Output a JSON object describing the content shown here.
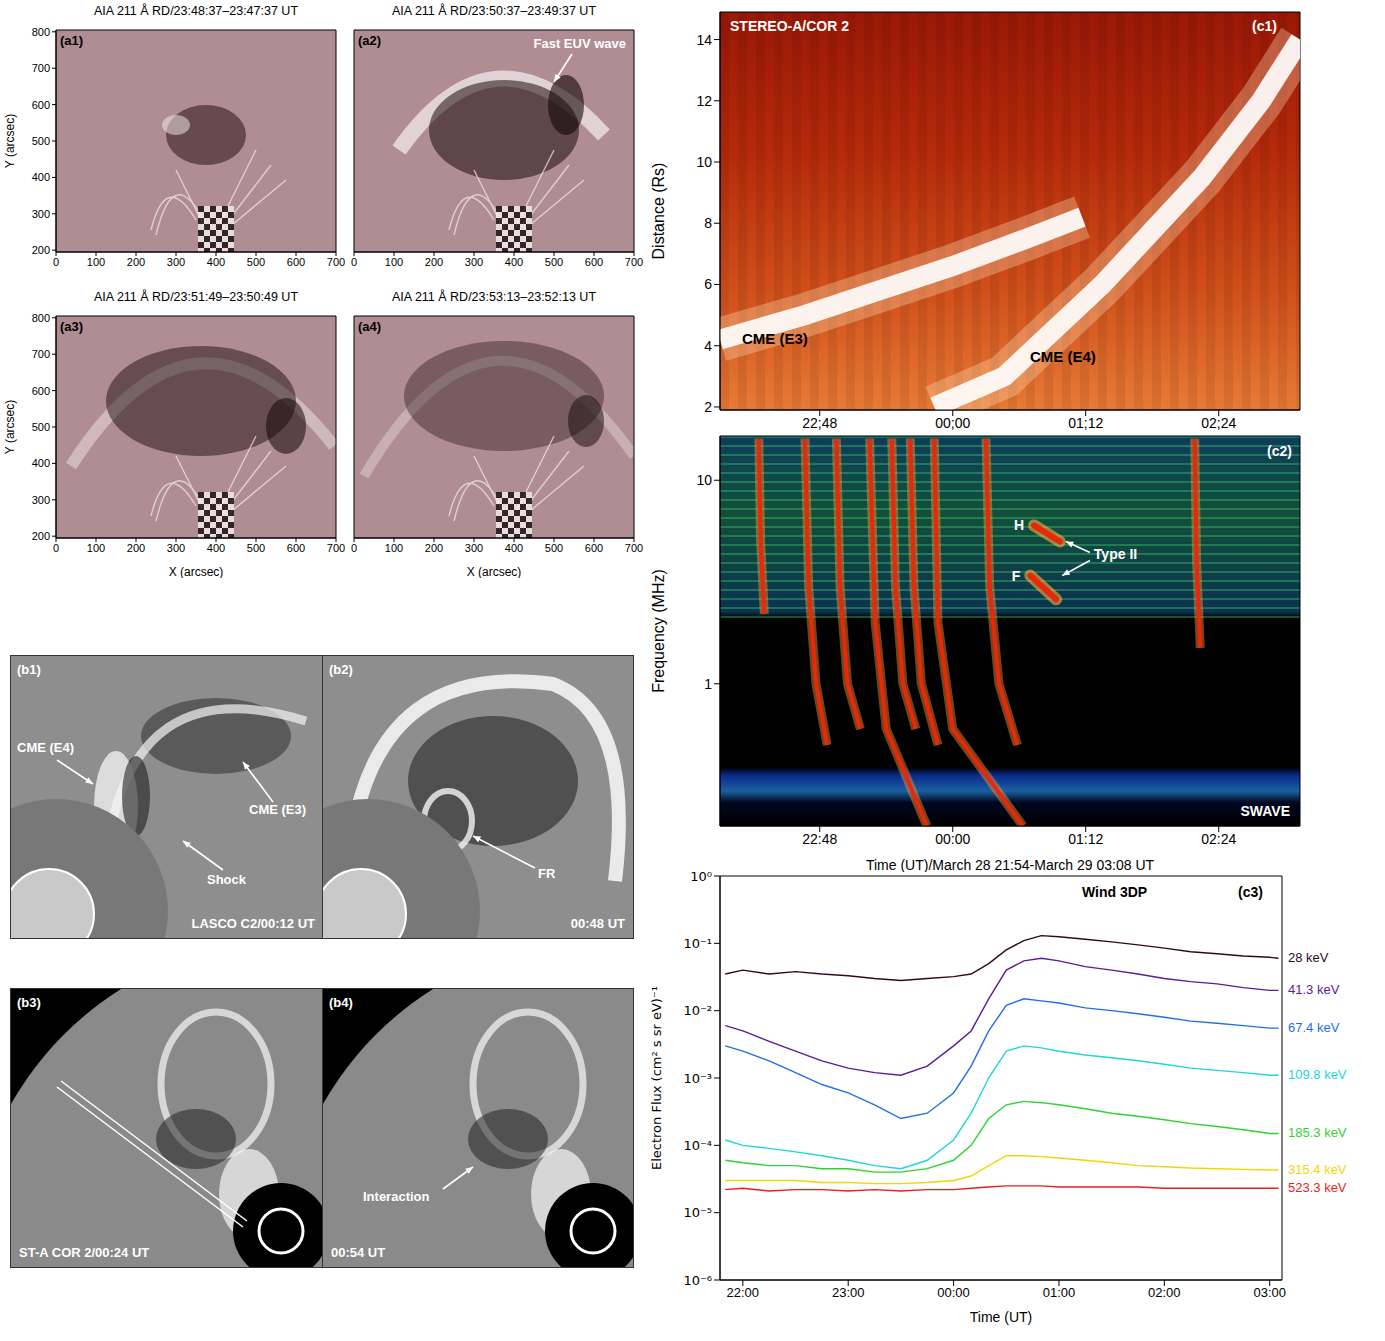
{
  "chart_data": [
    {
      "type": "image",
      "panel_label": "(a1)",
      "title": "AIA 211 Å RD/23:48:37–23:47:37 UT",
      "y_label": "Y (arcsec)",
      "xlim": [
        0,
        700
      ],
      "ylim": [
        195,
        805
      ],
      "xticks": [
        0,
        100,
        200,
        300,
        400,
        500,
        600,
        700
      ],
      "yticks": [
        200,
        300,
        400,
        500,
        600,
        700,
        800
      ],
      "annotations": []
    },
    {
      "type": "image",
      "panel_label": "(a2)",
      "title": "AIA 211 Å RD/23:50:37–23:49:37 UT",
      "tick_labels": "x",
      "xlim": [
        0,
        700
      ],
      "ylim": [
        195,
        805
      ],
      "xticks": [
        0,
        100,
        200,
        300,
        400,
        500,
        600,
        700
      ],
      "yticks": [
        200,
        300,
        400,
        500,
        600,
        700,
        800
      ],
      "annotations": [
        "Fast EUV wave"
      ]
    },
    {
      "type": "image",
      "panel_label": "(a3)",
      "title": "AIA 211 Å RD/23:51:49–23:50:49 UT",
      "x_label": "X (arcsec)",
      "y_label": "Y (arcsec)",
      "xlim": [
        0,
        700
      ],
      "ylim": [
        195,
        805
      ],
      "xticks": [
        0,
        100,
        200,
        300,
        400,
        500,
        600,
        700
      ],
      "yticks": [
        200,
        300,
        400,
        500,
        600,
        700,
        800
      ],
      "annotations": []
    },
    {
      "type": "image",
      "panel_label": "(a4)",
      "title": "AIA 211 Å RD/23:53:13–23:52:13 UT",
      "x_label": "X (arcsec)",
      "tick_labels": "x",
      "xlim": [
        0,
        700
      ],
      "ylim": [
        195,
        805
      ],
      "xticks": [
        0,
        100,
        200,
        300,
        400,
        500,
        600,
        700
      ],
      "yticks": [
        200,
        300,
        400,
        500,
        600,
        700,
        800
      ],
      "annotations": []
    },
    {
      "type": "jmap",
      "panel_label": "(c1)",
      "title": "STEREO-A/COR 2",
      "y_label": "Distance (Rs)",
      "xlim": [
        1314,
        1628
      ],
      "xticks": [
        {
          "value": 1368,
          "label": "22;48"
        },
        {
          "value": 1440,
          "label": "00;00"
        },
        {
          "value": 1512,
          "label": "01;12"
        },
        {
          "value": 1584,
          "label": "02;24"
        }
      ],
      "ylim": [
        1.9,
        14.9
      ],
      "yticks": [
        2,
        4,
        6,
        8,
        10,
        12,
        14
      ],
      "series": [
        {
          "name": "CME (E3)",
          "x": [
            1314,
            1360,
            1400,
            1440,
            1480,
            1510
          ],
          "values": [
            4.2,
            5.0,
            5.8,
            6.6,
            7.5,
            8.2
          ]
        },
        {
          "name": "CME (E4)",
          "x": [
            1430,
            1468,
            1521,
            1575,
            1607,
            1628
          ],
          "values": [
            2.0,
            3.0,
            6.0,
            9.5,
            12.0,
            14.0
          ]
        }
      ]
    },
    {
      "type": "spectrogram",
      "panel_label": "(c2)",
      "title": "SWAVE",
      "y_label": "Frequency (MHz)",
      "x_label": "Time (UT)/March 28 21:54-March 29 03:08 UT",
      "log": "y",
      "xlim": [
        1314,
        1628
      ],
      "xticks": [
        {
          "value": 1368,
          "label": "22:48"
        },
        {
          "value": 1440,
          "label": "00:00"
        },
        {
          "value": 1512,
          "label": "01:12"
        },
        {
          "value": 1584,
          "label": "02:24"
        }
      ],
      "ylim": [
        0.2,
        16.5
      ],
      "yticks": [
        1,
        10
      ],
      "bursts": [
        {
          "x": [
            1335,
            1336,
            1338
          ],
          "values": [
            16,
            5,
            2.2
          ]
        },
        {
          "x": [
            1360,
            1362,
            1366,
            1372
          ],
          "values": [
            16,
            3,
            1,
            0.5
          ]
        },
        {
          "x": [
            1377,
            1379,
            1383,
            1390
          ],
          "values": [
            16,
            3,
            1,
            0.6
          ]
        },
        {
          "x": [
            1395,
            1398,
            1404,
            1426
          ],
          "values": [
            16,
            2,
            0.6,
            0.2
          ]
        },
        {
          "x": [
            1407,
            1409,
            1413,
            1420
          ],
          "values": [
            16,
            3,
            1,
            0.6
          ]
        },
        {
          "x": [
            1417,
            1419,
            1423,
            1432
          ],
          "values": [
            16,
            3,
            1,
            0.5
          ]
        },
        {
          "x": [
            1430,
            1432,
            1440,
            1478
          ],
          "values": [
            16,
            2,
            0.6,
            0.2
          ]
        },
        {
          "x": [
            1458,
            1460,
            1465,
            1475
          ],
          "values": [
            16,
            3,
            1,
            0.5
          ]
        },
        {
          "x": [
            1571,
            1572,
            1574
          ],
          "values": [
            16,
            4,
            1.5
          ]
        }
      ],
      "type_II": {
        "name": "Type II",
        "bands": [
          {
            "name": "H",
            "x": [
              1484,
              1498
            ],
            "values": [
              6.0,
              5.0
            ]
          },
          {
            "name": "F",
            "x": [
              1482,
              1496
            ],
            "values": [
              3.4,
              2.6
            ]
          }
        ]
      }
    },
    {
      "type": "line",
      "panel_label": "(c3)",
      "title": "Wind 3DP",
      "x_label": "Time (UT)",
      "y_label": "Electron Flux (cm² s sr eV)⁻¹",
      "log": "y",
      "xlim": [
        1307,
        1627
      ],
      "xticks": [
        {
          "value": 1320,
          "label": "22:00"
        },
        {
          "value": 1380,
          "label": "23:00"
        },
        {
          "value": 1440,
          "label": "00:00"
        },
        {
          "value": 1500,
          "label": "01:00"
        },
        {
          "value": 1560,
          "label": "02:00"
        },
        {
          "value": 1620,
          "label": "03:00"
        }
      ],
      "ylim": [
        1e-06,
        1
      ],
      "yticks": [
        {
          "value": 1e-06,
          "label": "10⁻⁶"
        },
        {
          "value": 1e-05,
          "label": "10⁻⁵"
        },
        {
          "value": 0.0001,
          "label": "10⁻⁴"
        },
        {
          "value": 0.001,
          "label": "10⁻³"
        },
        {
          "value": 0.01,
          "label": "10⁻²"
        },
        {
          "value": 0.1,
          "label": "10⁻¹"
        },
        {
          "value": 1,
          "label": "10⁰"
        }
      ],
      "x": [
        1310,
        1320,
        1335,
        1350,
        1365,
        1380,
        1395,
        1410,
        1425,
        1440,
        1450,
        1460,
        1470,
        1480,
        1490,
        1500,
        1515,
        1530,
        1545,
        1560,
        1575,
        1590,
        1605,
        1620,
        1625
      ],
      "series": [
        {
          "name": "28 keV",
          "color": "#2d0a24",
          "values": [
            0.035,
            0.04,
            0.035,
            0.038,
            0.035,
            0.033,
            0.03,
            0.028,
            0.03,
            0.032,
            0.035,
            0.05,
            0.08,
            0.11,
            0.13,
            0.125,
            0.115,
            0.105,
            0.095,
            0.085,
            0.075,
            0.07,
            0.065,
            0.062,
            0.06
          ]
        },
        {
          "name": "41.3 keV",
          "color": "#5b1a9e",
          "values": [
            0.006,
            0.005,
            0.0035,
            0.0025,
            0.0018,
            0.0014,
            0.0012,
            0.0011,
            0.0015,
            0.003,
            0.005,
            0.015,
            0.04,
            0.055,
            0.06,
            0.055,
            0.045,
            0.04,
            0.035,
            0.03,
            0.027,
            0.025,
            0.022,
            0.02,
            0.02
          ]
        },
        {
          "name": "67.4 keV",
          "color": "#1f6fe8",
          "values": [
            0.003,
            0.0025,
            0.0018,
            0.0012,
            0.0008,
            0.0006,
            0.0004,
            0.00025,
            0.0003,
            0.0006,
            0.0015,
            0.005,
            0.012,
            0.015,
            0.014,
            0.013,
            0.011,
            0.01,
            0.009,
            0.008,
            0.007,
            0.0065,
            0.006,
            0.0055,
            0.0055
          ]
        },
        {
          "name": "109.8 keV",
          "color": "#1fd6d6",
          "values": [
            0.00012,
            0.0001,
            9e-05,
            8e-05,
            7e-05,
            6e-05,
            5e-05,
            4.5e-05,
            6e-05,
            0.00012,
            0.0003,
            0.001,
            0.0025,
            0.003,
            0.0028,
            0.0025,
            0.0022,
            0.002,
            0.0018,
            0.0016,
            0.0014,
            0.0013,
            0.0012,
            0.0011,
            0.0011
          ]
        },
        {
          "name": "185.3 keV",
          "color": "#2fd22f",
          "values": [
            6e-05,
            5.5e-05,
            5e-05,
            5e-05,
            4.5e-05,
            4.5e-05,
            4e-05,
            4e-05,
            4.5e-05,
            6e-05,
            0.0001,
            0.00025,
            0.0004,
            0.00045,
            0.00043,
            0.0004,
            0.00035,
            0.0003,
            0.00027,
            0.00024,
            0.00021,
            0.00019,
            0.00017,
            0.00015,
            0.00015
          ]
        },
        {
          "name": "315.4 keV",
          "color": "#f2d600",
          "values": [
            3e-05,
            3e-05,
            3e-05,
            3e-05,
            2.8e-05,
            2.8e-05,
            2.7e-05,
            2.7e-05,
            2.8e-05,
            3e-05,
            3.5e-05,
            5e-05,
            7e-05,
            7e-05,
            6.8e-05,
            6.5e-05,
            6e-05,
            5.5e-05,
            5e-05,
            4.8e-05,
            4.6e-05,
            4.5e-05,
            4.4e-05,
            4.3e-05,
            4.3e-05
          ]
        },
        {
          "name": "523.3 keV",
          "color": "#ee1c1c",
          "values": [
            2.2e-05,
            2.3e-05,
            2.1e-05,
            2.2e-05,
            2.2e-05,
            2.1e-05,
            2.2e-05,
            2.1e-05,
            2.2e-05,
            2.2e-05,
            2.3e-05,
            2.4e-05,
            2.5e-05,
            2.5e-05,
            2.5e-05,
            2.4e-05,
            2.4e-05,
            2.4e-05,
            2.4e-05,
            2.3e-05,
            2.3e-05,
            2.3e-05,
            2.3e-05,
            2.3e-05,
            2.3e-05
          ]
        }
      ]
    }
  ],
  "images": [
    {
      "panel_label": "(b1)",
      "caption": "LASCO C2/00:12 UT",
      "annotations": [
        "CME (E4)",
        "CME (E3)",
        "Shock"
      ]
    },
    {
      "panel_label": "(b2)",
      "caption": "00:48 UT",
      "annotations": [
        "FR"
      ]
    },
    {
      "panel_label": "(b3)",
      "caption": "ST-A COR 2/00:24 UT",
      "annotations": []
    },
    {
      "panel_label": "(b4)",
      "caption": "00:54 UT",
      "annotations": [
        "Interaction"
      ]
    }
  ]
}
